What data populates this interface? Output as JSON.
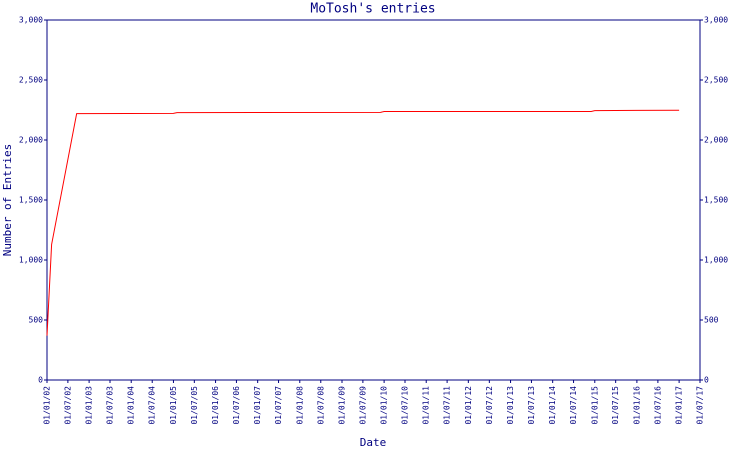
{
  "chart_data": {
    "type": "line",
    "title": "MoTosh's entries",
    "x_label": "Date",
    "y_label": "Number of Entries",
    "x": [
      "2002-01-01",
      "2002-02-10",
      "2002-09-15",
      "2005-01-01",
      "2005-02-01",
      "2009-12-01",
      "2010-01-01",
      "2014-12-01",
      "2015-01-01",
      "2017-01-01"
    ],
    "series": [
      {
        "name": "MoTosh",
        "color": "#ff0000",
        "values": [
          370,
          1130,
          2220,
          2222,
          2228,
          2230,
          2237,
          2238,
          2245,
          2248
        ]
      }
    ],
    "xlim": [
      "2002-01-01",
      "2017-07-01"
    ],
    "xticks": [
      {
        "value": "2002-01-01",
        "label": "01/01/02"
      },
      {
        "value": "2002-07-01",
        "label": "01/07/02"
      },
      {
        "value": "2003-01-01",
        "label": "01/01/03"
      },
      {
        "value": "2003-07-01",
        "label": "01/07/03"
      },
      {
        "value": "2004-01-01",
        "label": "01/01/04"
      },
      {
        "value": "2004-07-01",
        "label": "01/07/04"
      },
      {
        "value": "2005-01-01",
        "label": "01/01/05"
      },
      {
        "value": "2005-07-01",
        "label": "01/07/05"
      },
      {
        "value": "2006-01-01",
        "label": "01/01/06"
      },
      {
        "value": "2006-07-01",
        "label": "01/07/06"
      },
      {
        "value": "2007-01-01",
        "label": "01/01/07"
      },
      {
        "value": "2007-07-01",
        "label": "01/07/07"
      },
      {
        "value": "2008-01-01",
        "label": "01/01/08"
      },
      {
        "value": "2008-07-01",
        "label": "01/07/08"
      },
      {
        "value": "2009-01-01",
        "label": "01/01/09"
      },
      {
        "value": "2009-07-01",
        "label": "01/07/09"
      },
      {
        "value": "2010-01-01",
        "label": "01/01/10"
      },
      {
        "value": "2010-07-01",
        "label": "01/07/10"
      },
      {
        "value": "2011-01-01",
        "label": "01/01/11"
      },
      {
        "value": "2011-07-01",
        "label": "01/07/11"
      },
      {
        "value": "2012-01-01",
        "label": "01/01/12"
      },
      {
        "value": "2012-07-01",
        "label": "01/07/12"
      },
      {
        "value": "2013-01-01",
        "label": "01/01/13"
      },
      {
        "value": "2013-07-01",
        "label": "01/07/13"
      },
      {
        "value": "2014-01-01",
        "label": "01/01/14"
      },
      {
        "value": "2014-07-01",
        "label": "01/07/14"
      },
      {
        "value": "2015-01-01",
        "label": "01/01/15"
      },
      {
        "value": "2015-07-01",
        "label": "01/07/15"
      },
      {
        "value": "2016-01-01",
        "label": "01/01/16"
      },
      {
        "value": "2016-07-01",
        "label": "01/07/16"
      },
      {
        "value": "2017-01-01",
        "label": "01/01/17"
      },
      {
        "value": "2017-07-01",
        "label": "01/07/17"
      }
    ],
    "ylim": [
      0,
      3000
    ],
    "yticks": [
      0,
      {
        "value": 500,
        "label": "500"
      },
      {
        "value": 1000,
        "label": "1,000"
      },
      {
        "value": 1500,
        "label": "1,500"
      },
      {
        "value": 2000,
        "label": "2,000"
      },
      {
        "value": 2500,
        "label": "2,500"
      },
      {
        "value": 3000,
        "label": "3,000"
      }
    ],
    "axis_color": "#000080"
  }
}
